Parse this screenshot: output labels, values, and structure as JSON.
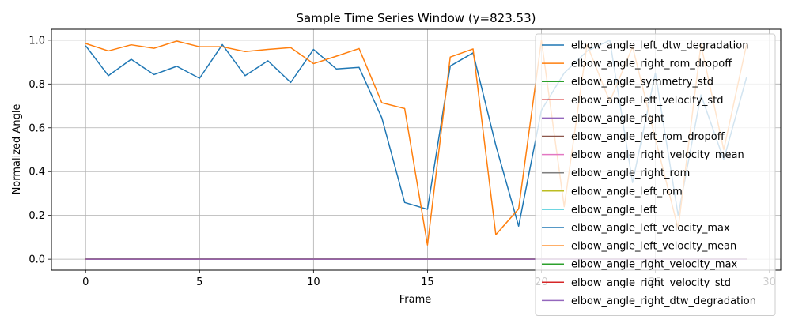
{
  "chart_data": {
    "type": "line",
    "title": "Sample Time Series Window (y=823.53)",
    "xlabel": "Frame",
    "ylabel": "Normalized Angle",
    "xlim": [
      -1.5,
      30.5
    ],
    "ylim": [
      -0.05,
      1.05
    ],
    "xticks": [
      0,
      5,
      10,
      15,
      20,
      25,
      30
    ],
    "yticks": [
      0.0,
      0.2,
      0.4,
      0.6,
      0.8,
      1.0
    ],
    "grid": true,
    "legend_position": "right",
    "x": [
      0,
      1,
      2,
      3,
      4,
      5,
      6,
      7,
      8,
      9,
      10,
      11,
      12,
      13,
      14,
      15,
      16,
      17,
      18,
      19,
      20,
      21,
      22,
      23,
      24,
      25,
      26,
      27,
      28,
      29
    ],
    "series": [
      {
        "name": "elbow_angle_left_dtw_degradation",
        "color": "#1f77b4",
        "values": [
          0.975,
          0.838,
          0.913,
          0.843,
          0.881,
          0.826,
          0.98,
          0.838,
          0.906,
          0.807,
          0.958,
          0.869,
          0.876,
          0.645,
          0.259,
          0.228,
          0.882,
          0.942,
          0.52,
          0.151,
          0.68,
          0.85,
          0.95,
          1.0,
          0.35,
          0.85,
          0.2,
          0.75,
          0.455,
          0.83
        ]
      },
      {
        "name": "elbow_angle_right_rom_dropoff",
        "color": "#ff7f0e",
        "values": [
          0.985,
          0.951,
          0.979,
          0.963,
          0.996,
          0.97,
          0.97,
          0.948,
          0.958,
          0.966,
          0.893,
          0.927,
          0.962,
          0.714,
          0.688,
          0.065,
          0.923,
          0.96,
          0.112,
          0.23,
          1.0,
          0.24,
          0.98,
          0.72,
          0.97,
          0.55,
          0.14,
          0.98,
          0.5,
          0.98
        ]
      },
      {
        "name": "elbow_angle_symmetry_std",
        "color": "#2ca02c",
        "values": [
          0,
          0,
          0,
          0,
          0,
          0,
          0,
          0,
          0,
          0,
          0,
          0,
          0,
          0,
          0,
          0,
          0,
          0,
          0,
          0,
          0,
          0,
          0,
          0,
          0,
          0,
          0,
          0,
          0,
          0
        ]
      },
      {
        "name": "elbow_angle_left_velocity_std",
        "color": "#d62728",
        "values": [
          0,
          0,
          0,
          0,
          0,
          0,
          0,
          0,
          0,
          0,
          0,
          0,
          0,
          0,
          0,
          0,
          0,
          0,
          0,
          0,
          0,
          0,
          0,
          0,
          0,
          0,
          0,
          0,
          0,
          0
        ]
      },
      {
        "name": "elbow_angle_right",
        "color": "#9467bd",
        "values": [
          0,
          0,
          0,
          0,
          0,
          0,
          0,
          0,
          0,
          0,
          0,
          0,
          0,
          0,
          0,
          0,
          0,
          0,
          0,
          0,
          0,
          0,
          0,
          0,
          0,
          0,
          0,
          0,
          0,
          0
        ]
      },
      {
        "name": "elbow_angle_left_rom_dropoff",
        "color": "#8c564b",
        "values": [
          0,
          0,
          0,
          0,
          0,
          0,
          0,
          0,
          0,
          0,
          0,
          0,
          0,
          0,
          0,
          0,
          0,
          0,
          0,
          0,
          0,
          0,
          0,
          0,
          0,
          0,
          0,
          0,
          0,
          0
        ]
      },
      {
        "name": "elbow_angle_right_velocity_mean",
        "color": "#e377c2",
        "values": [
          0,
          0,
          0,
          0,
          0,
          0,
          0,
          0,
          0,
          0,
          0,
          0,
          0,
          0,
          0,
          0,
          0,
          0,
          0,
          0,
          0,
          0,
          0,
          0,
          0,
          0,
          0,
          0,
          0,
          0
        ]
      },
      {
        "name": "elbow_angle_right_rom",
        "color": "#7f7f7f",
        "values": [
          0,
          0,
          0,
          0,
          0,
          0,
          0,
          0,
          0,
          0,
          0,
          0,
          0,
          0,
          0,
          0,
          0,
          0,
          0,
          0,
          0,
          0,
          0,
          0,
          0,
          0,
          0,
          0,
          0,
          0
        ]
      },
      {
        "name": "elbow_angle_left_rom",
        "color": "#bcbd22",
        "values": [
          0,
          0,
          0,
          0,
          0,
          0,
          0,
          0,
          0,
          0,
          0,
          0,
          0,
          0,
          0,
          0,
          0,
          0,
          0,
          0,
          0,
          0,
          0,
          0,
          0,
          0,
          0,
          0,
          0,
          0
        ]
      },
      {
        "name": "elbow_angle_left",
        "color": "#17becf",
        "values": [
          0,
          0,
          0,
          0,
          0,
          0,
          0,
          0,
          0,
          0,
          0,
          0,
          0,
          0,
          0,
          0,
          0,
          0,
          0,
          0,
          0,
          0,
          0,
          0,
          0,
          0,
          0,
          0,
          0,
          0
        ]
      },
      {
        "name": "elbow_angle_left_velocity_max",
        "color": "#1f77b4",
        "values": [
          0,
          0,
          0,
          0,
          0,
          0,
          0,
          0,
          0,
          0,
          0,
          0,
          0,
          0,
          0,
          0,
          0,
          0,
          0,
          0,
          0,
          0,
          0,
          0,
          0,
          0,
          0,
          0,
          0,
          0
        ]
      },
      {
        "name": "elbow_angle_left_velocity_mean",
        "color": "#ff7f0e",
        "values": [
          0,
          0,
          0,
          0,
          0,
          0,
          0,
          0,
          0,
          0,
          0,
          0,
          0,
          0,
          0,
          0,
          0,
          0,
          0,
          0,
          0,
          0,
          0,
          0,
          0,
          0,
          0,
          0,
          0,
          0
        ]
      },
      {
        "name": "elbow_angle_right_velocity_max",
        "color": "#2ca02c",
        "values": [
          0,
          0,
          0,
          0,
          0,
          0,
          0,
          0,
          0,
          0,
          0,
          0,
          0,
          0,
          0,
          0,
          0,
          0,
          0,
          0,
          0,
          0,
          0,
          0,
          0,
          0,
          0,
          0,
          0,
          0
        ]
      },
      {
        "name": "elbow_angle_right_velocity_std",
        "color": "#d62728",
        "values": [
          0,
          0,
          0,
          0,
          0,
          0,
          0,
          0,
          0,
          0,
          0,
          0,
          0,
          0,
          0,
          0,
          0,
          0,
          0,
          0,
          0,
          0,
          0,
          0,
          0,
          0,
          0,
          0,
          0,
          0
        ]
      },
      {
        "name": "elbow_angle_right_dtw_degradation",
        "color": "#9467bd",
        "values": [
          0,
          0,
          0,
          0,
          0,
          0,
          0,
          0,
          0,
          0,
          0,
          0,
          0,
          0,
          0,
          0,
          0,
          0,
          0,
          0,
          0,
          0,
          0,
          0,
          0,
          0,
          0,
          0,
          0,
          0
        ]
      }
    ]
  }
}
